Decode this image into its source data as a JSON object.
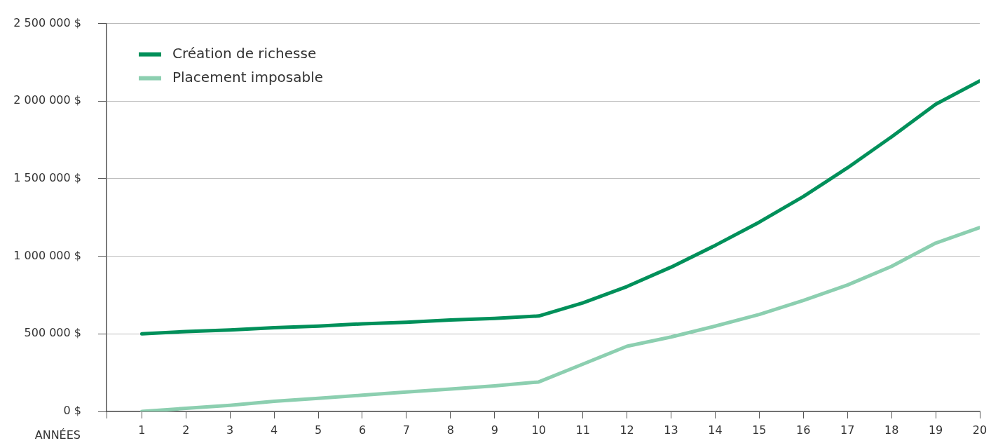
{
  "chart_data": {
    "type": "line",
    "xlabel": "ANNÉES",
    "x": [
      1,
      2,
      3,
      4,
      5,
      6,
      7,
      8,
      9,
      10,
      11,
      12,
      13,
      14,
      15,
      16,
      17,
      18,
      19,
      20
    ],
    "series": [
      {
        "name": "Création de richesse",
        "color": "#00905a",
        "values": [
          500000,
          515000,
          525000,
          540000,
          550000,
          565000,
          575000,
          590000,
          600000,
          615000,
          700000,
          805000,
          930000,
          1070000,
          1220000,
          1385000,
          1570000,
          1770000,
          1980000,
          2130000
        ]
      },
      {
        "name": "Placement imposable",
        "color": "#8ccfb0",
        "values": [
          0,
          20000,
          40000,
          65000,
          85000,
          105000,
          125000,
          145000,
          165000,
          190000,
          305000,
          420000,
          480000,
          550000,
          625000,
          715000,
          815000,
          935000,
          1085000,
          1185000
        ]
      }
    ],
    "xlim": [
      0.2,
      20
    ],
    "xticks": [
      {
        "value": 0.2,
        "label": null
      },
      1,
      2,
      3,
      4,
      5,
      6,
      7,
      8,
      9,
      10,
      11,
      12,
      13,
      14,
      15,
      16,
      17,
      18,
      19,
      20
    ],
    "ylim": [
      0,
      2500000
    ],
    "yticks": [
      {
        "value": 0,
        "label": "0 $"
      },
      {
        "value": 500000,
        "label": "500 000 $"
      },
      {
        "value": 1000000,
        "label": "1 000 000 $"
      },
      {
        "value": 1500000,
        "label": "1 500 000 $"
      },
      {
        "value": 2000000,
        "label": "2 000 000 $"
      },
      {
        "value": 2500000,
        "label": "2 500 000 $"
      }
    ],
    "grid": "y",
    "legend": "top left",
    "marker": "none",
    "line_style": "solid"
  }
}
